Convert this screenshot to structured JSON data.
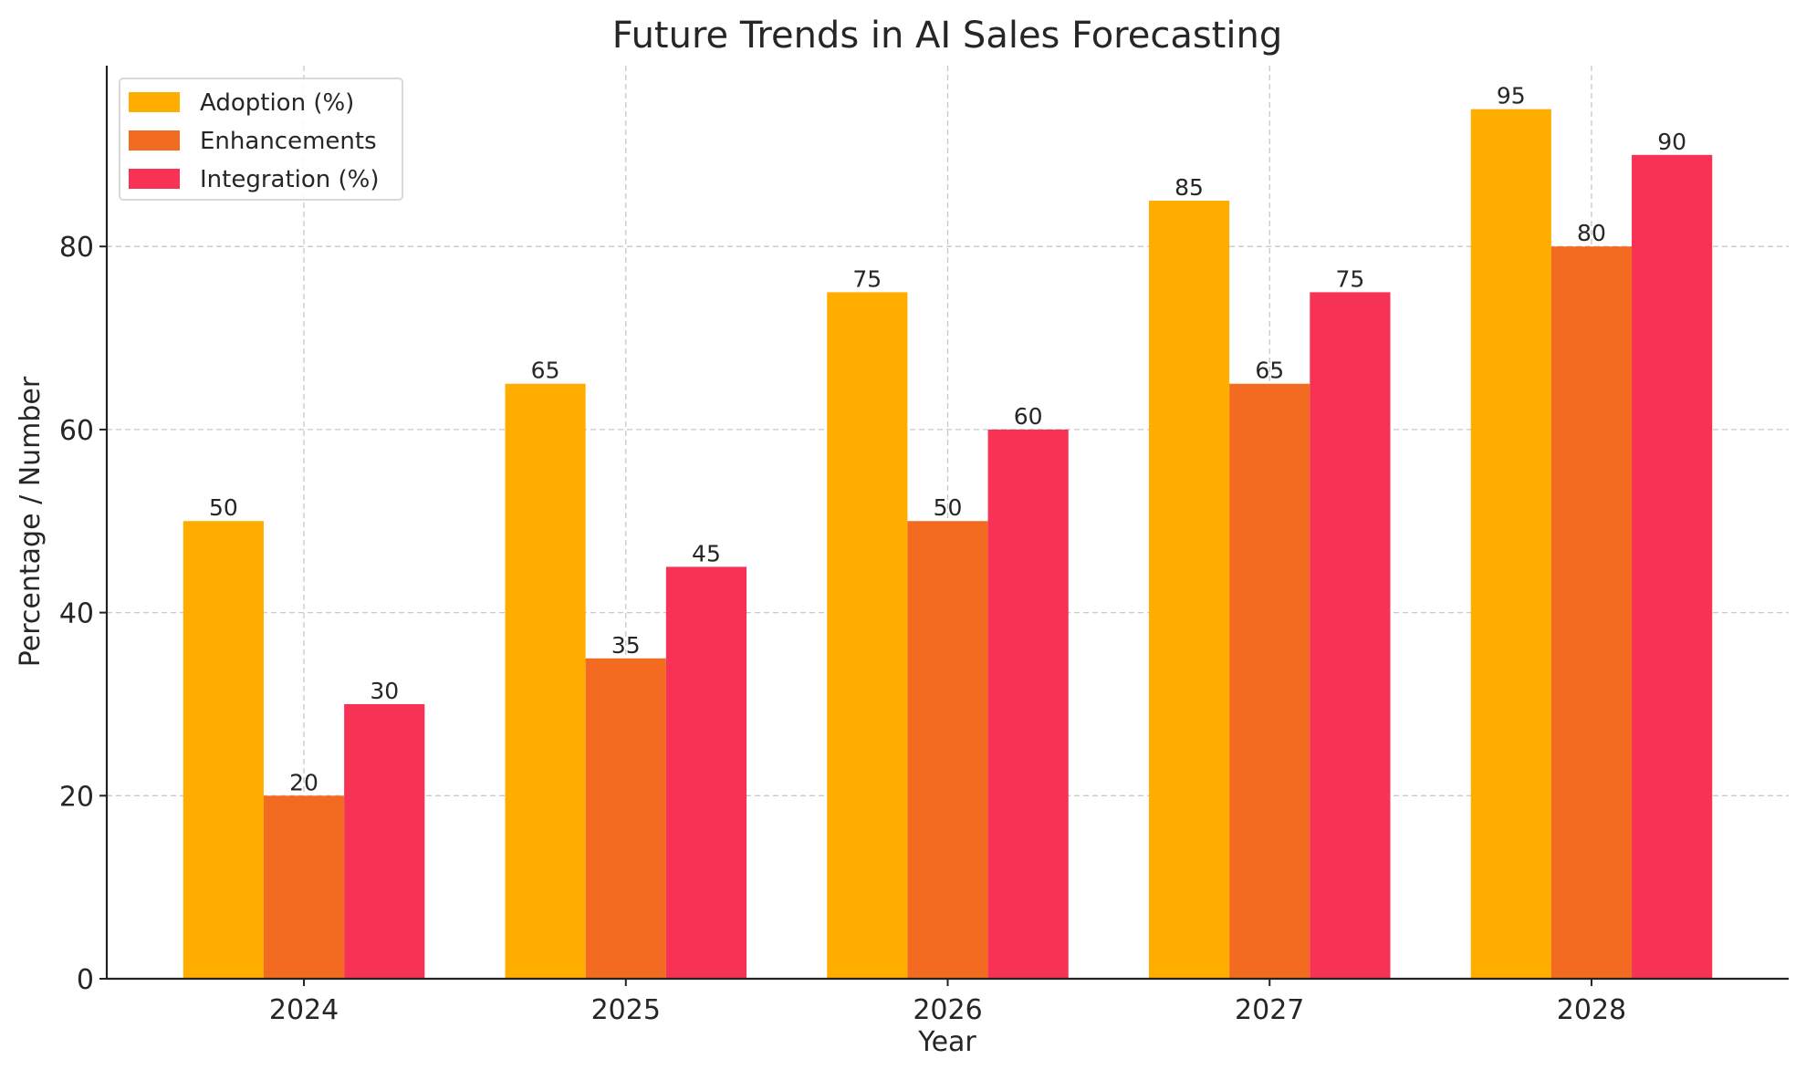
{
  "chart_data": {
    "type": "bar",
    "title": "Future Trends in AI Sales Forecasting",
    "xlabel": "Year",
    "ylabel": "Percentage / Number",
    "categories": [
      "2024",
      "2025",
      "2026",
      "2027",
      "2028"
    ],
    "series": [
      {
        "name": "Adoption (%)",
        "values": [
          50,
          65,
          75,
          85,
          95
        ],
        "color": "#FFAE00"
      },
      {
        "name": "Enhancements",
        "values": [
          20,
          35,
          50,
          65,
          80
        ],
        "color": "#F26B21"
      },
      {
        "name": "Integration (%)",
        "values": [
          30,
          45,
          60,
          75,
          90
        ],
        "color": "#F73255"
      }
    ],
    "ylim": [
      0,
      99.75
    ],
    "yticks": [
      0,
      20,
      40,
      60,
      80
    ],
    "grid": true,
    "grid_style": "dashed",
    "legend_position": "top-left",
    "data_labels": true
  }
}
